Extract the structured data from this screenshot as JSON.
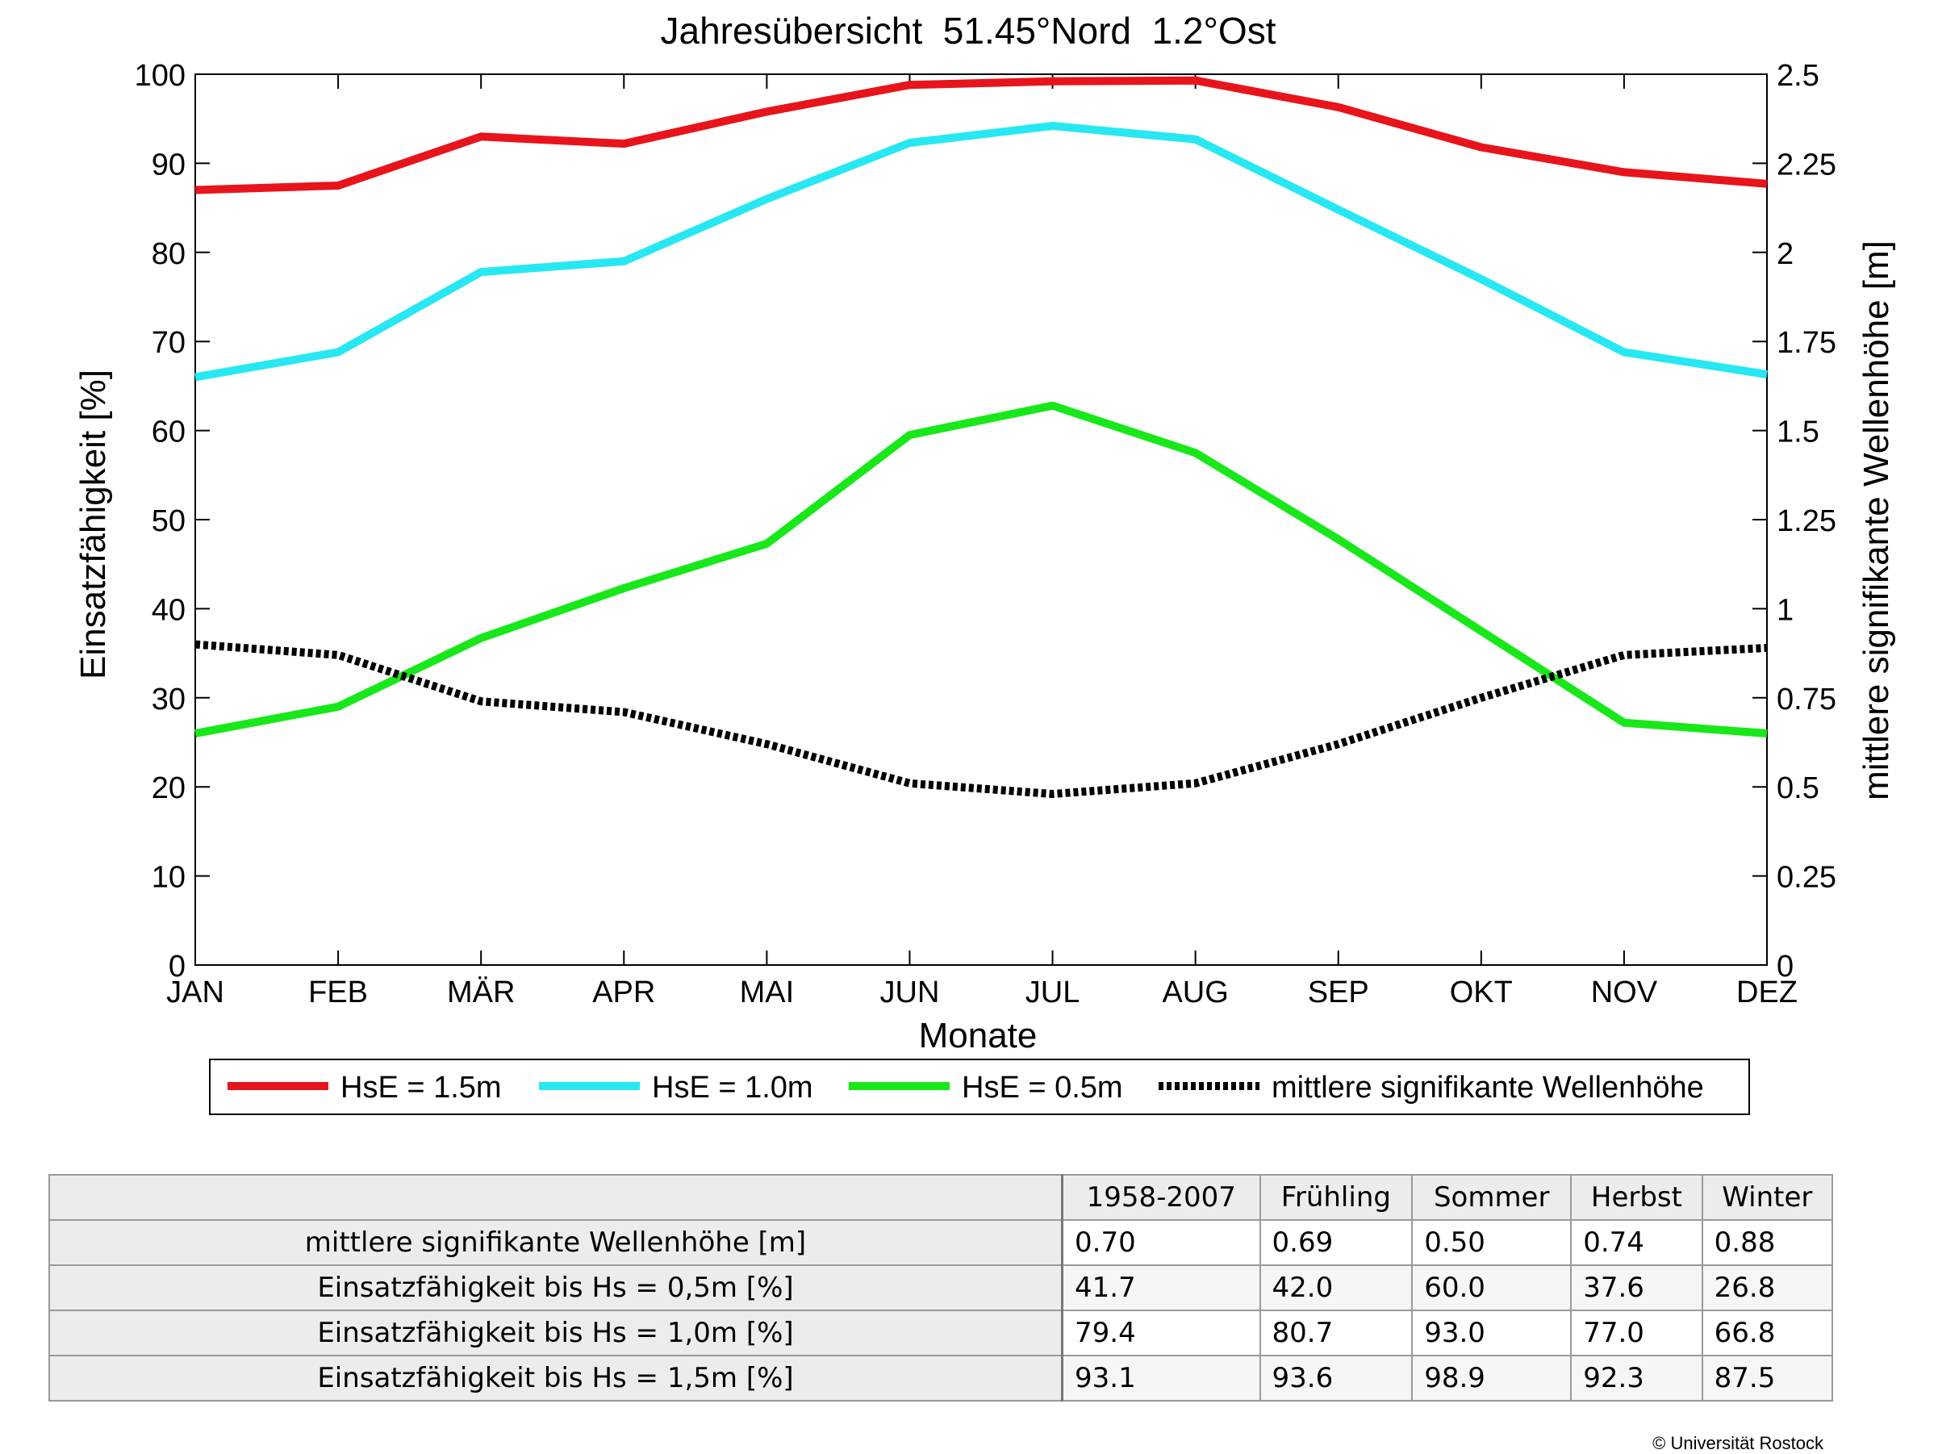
{
  "chart_data": {
    "type": "line",
    "title": "Jahresübersicht  51.45°Nord  1.2°Ost",
    "xlabel": "Monate",
    "ylabel": "Einsatzfähigkeit [%]",
    "ylabel_right": "mittlere signifikante Wellenhöhe [m]",
    "categories": [
      "JAN",
      "FEB",
      "MÄR",
      "APR",
      "MAI",
      "JUN",
      "JUL",
      "AUG",
      "SEP",
      "OKT",
      "NOV",
      "DEZ"
    ],
    "ylim": [
      0,
      100
    ],
    "ylim_right": [
      0,
      2.5
    ],
    "yticks": [
      "0",
      "10",
      "20",
      "30",
      "40",
      "50",
      "60",
      "70",
      "80",
      "90",
      "100"
    ],
    "yticks_right": [
      "0",
      "0.25",
      "0.5",
      "0.75",
      "1",
      "1.25",
      "1.5",
      "1.75",
      "2",
      "2.25",
      "2.5"
    ],
    "grid": false,
    "legend_position": "bottom",
    "series": [
      {
        "name": "HsE = 1.5m",
        "axis": "left",
        "color": "#e8141b",
        "style": "solid",
        "values": [
          87.0,
          87.5,
          93.0,
          92.2,
          95.8,
          98.8,
          99.2,
          99.3,
          96.3,
          91.8,
          89.0,
          87.7
        ]
      },
      {
        "name": "HsE = 1.0m",
        "axis": "left",
        "color": "#27e8f2",
        "style": "solid",
        "values": [
          66.0,
          68.8,
          77.8,
          79.0,
          86.0,
          92.3,
          94.2,
          92.7,
          84.8,
          77.0,
          68.8,
          66.3
        ]
      },
      {
        "name": "HsE = 0.5m",
        "axis": "left",
        "color": "#18e81a",
        "style": "solid",
        "values": [
          26.0,
          29.0,
          36.7,
          42.3,
          47.3,
          59.5,
          62.8,
          57.5,
          47.8,
          37.5,
          27.2,
          26.0
        ]
      },
      {
        "name": "mittlere signifikante Wellenhöhe",
        "axis": "right",
        "color": "#000000",
        "style": "dotted",
        "values": [
          0.9,
          0.87,
          0.74,
          0.71,
          0.62,
          0.51,
          0.48,
          0.51,
          0.62,
          0.75,
          0.87,
          0.89
        ]
      }
    ]
  },
  "table": {
    "columns": [
      "1958-2007",
      "Frühling",
      "Sommer",
      "Herbst",
      "Winter"
    ],
    "rows": [
      {
        "label": "mittlere signifikante Wellenhöhe [m]",
        "values": [
          "0.70",
          "0.69",
          "0.50",
          "0.74",
          "0.88"
        ]
      },
      {
        "label": "Einsatzfähigkeit bis Hs = 0,5m [%]",
        "values": [
          "41.7",
          "42.0",
          "60.0",
          "37.6",
          "26.8"
        ]
      },
      {
        "label": "Einsatzfähigkeit bis Hs = 1,0m [%]",
        "values": [
          "79.4",
          "80.7",
          "93.0",
          "77.0",
          "66.8"
        ]
      },
      {
        "label": "Einsatzfähigkeit bis Hs = 1,5m [%]",
        "values": [
          "93.1",
          "93.6",
          "98.9",
          "92.3",
          "87.5"
        ]
      }
    ]
  },
  "credit": "© Universität Rostock"
}
